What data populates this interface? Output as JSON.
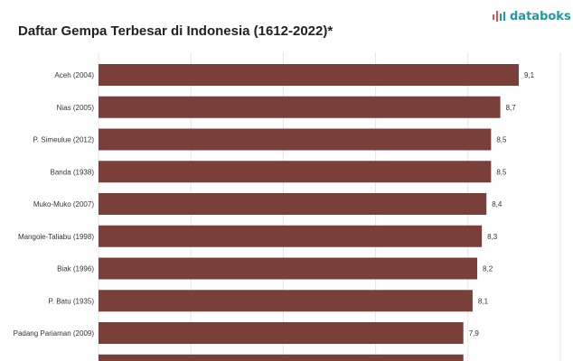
{
  "header": {
    "title": "Daftar Gempa Terbesar di Indonesia (1612-2022)*",
    "brand_name": "databoks",
    "brand_icon": "databoks-logo-icon"
  },
  "colors": {
    "bar": "#7b3f3a",
    "grid": "#e6e6e6",
    "brand": "#1e9aa6",
    "brand_accent": "#e0534a"
  },
  "chart_data": {
    "type": "bar",
    "orientation": "horizontal",
    "title": "Daftar Gempa Terbesar di Indonesia (1612-2022)*",
    "xlabel": "",
    "ylabel": "",
    "grid": true,
    "xlim": [
      0,
      10
    ],
    "categories": [
      "Aceh (2004)",
      "Nias (2005)",
      "P. Simeulue (2012)",
      "Banda (1938)",
      "Muko-Muko (2007)",
      "Mangole-Taliabu (1998)",
      "Biak (1996)",
      "P. Batu (1935)",
      "Padang Pariaman (2009)"
    ],
    "values": [
      9.1,
      8.7,
      8.5,
      8.5,
      8.4,
      8.3,
      8.2,
      8.1,
      7.9
    ],
    "value_labels": [
      "9,1",
      "8,7",
      "8,5",
      "8,5",
      "8,4",
      "8,3",
      "8,2",
      "8,1",
      "7,9"
    ],
    "partial_next_value": 7.9
  }
}
